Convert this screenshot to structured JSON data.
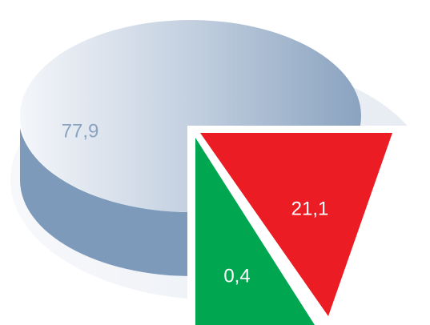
{
  "chart_data": {
    "type": "pie",
    "categories": [
      null,
      null,
      null
    ],
    "values": [
      77.9,
      21.1,
      0.4
    ],
    "value_labels": [
      "77,9",
      "21,1",
      "0,4"
    ],
    "colors": [
      "#8ea6c1",
      "#ec1c24",
      "#00a650"
    ]
  }
}
